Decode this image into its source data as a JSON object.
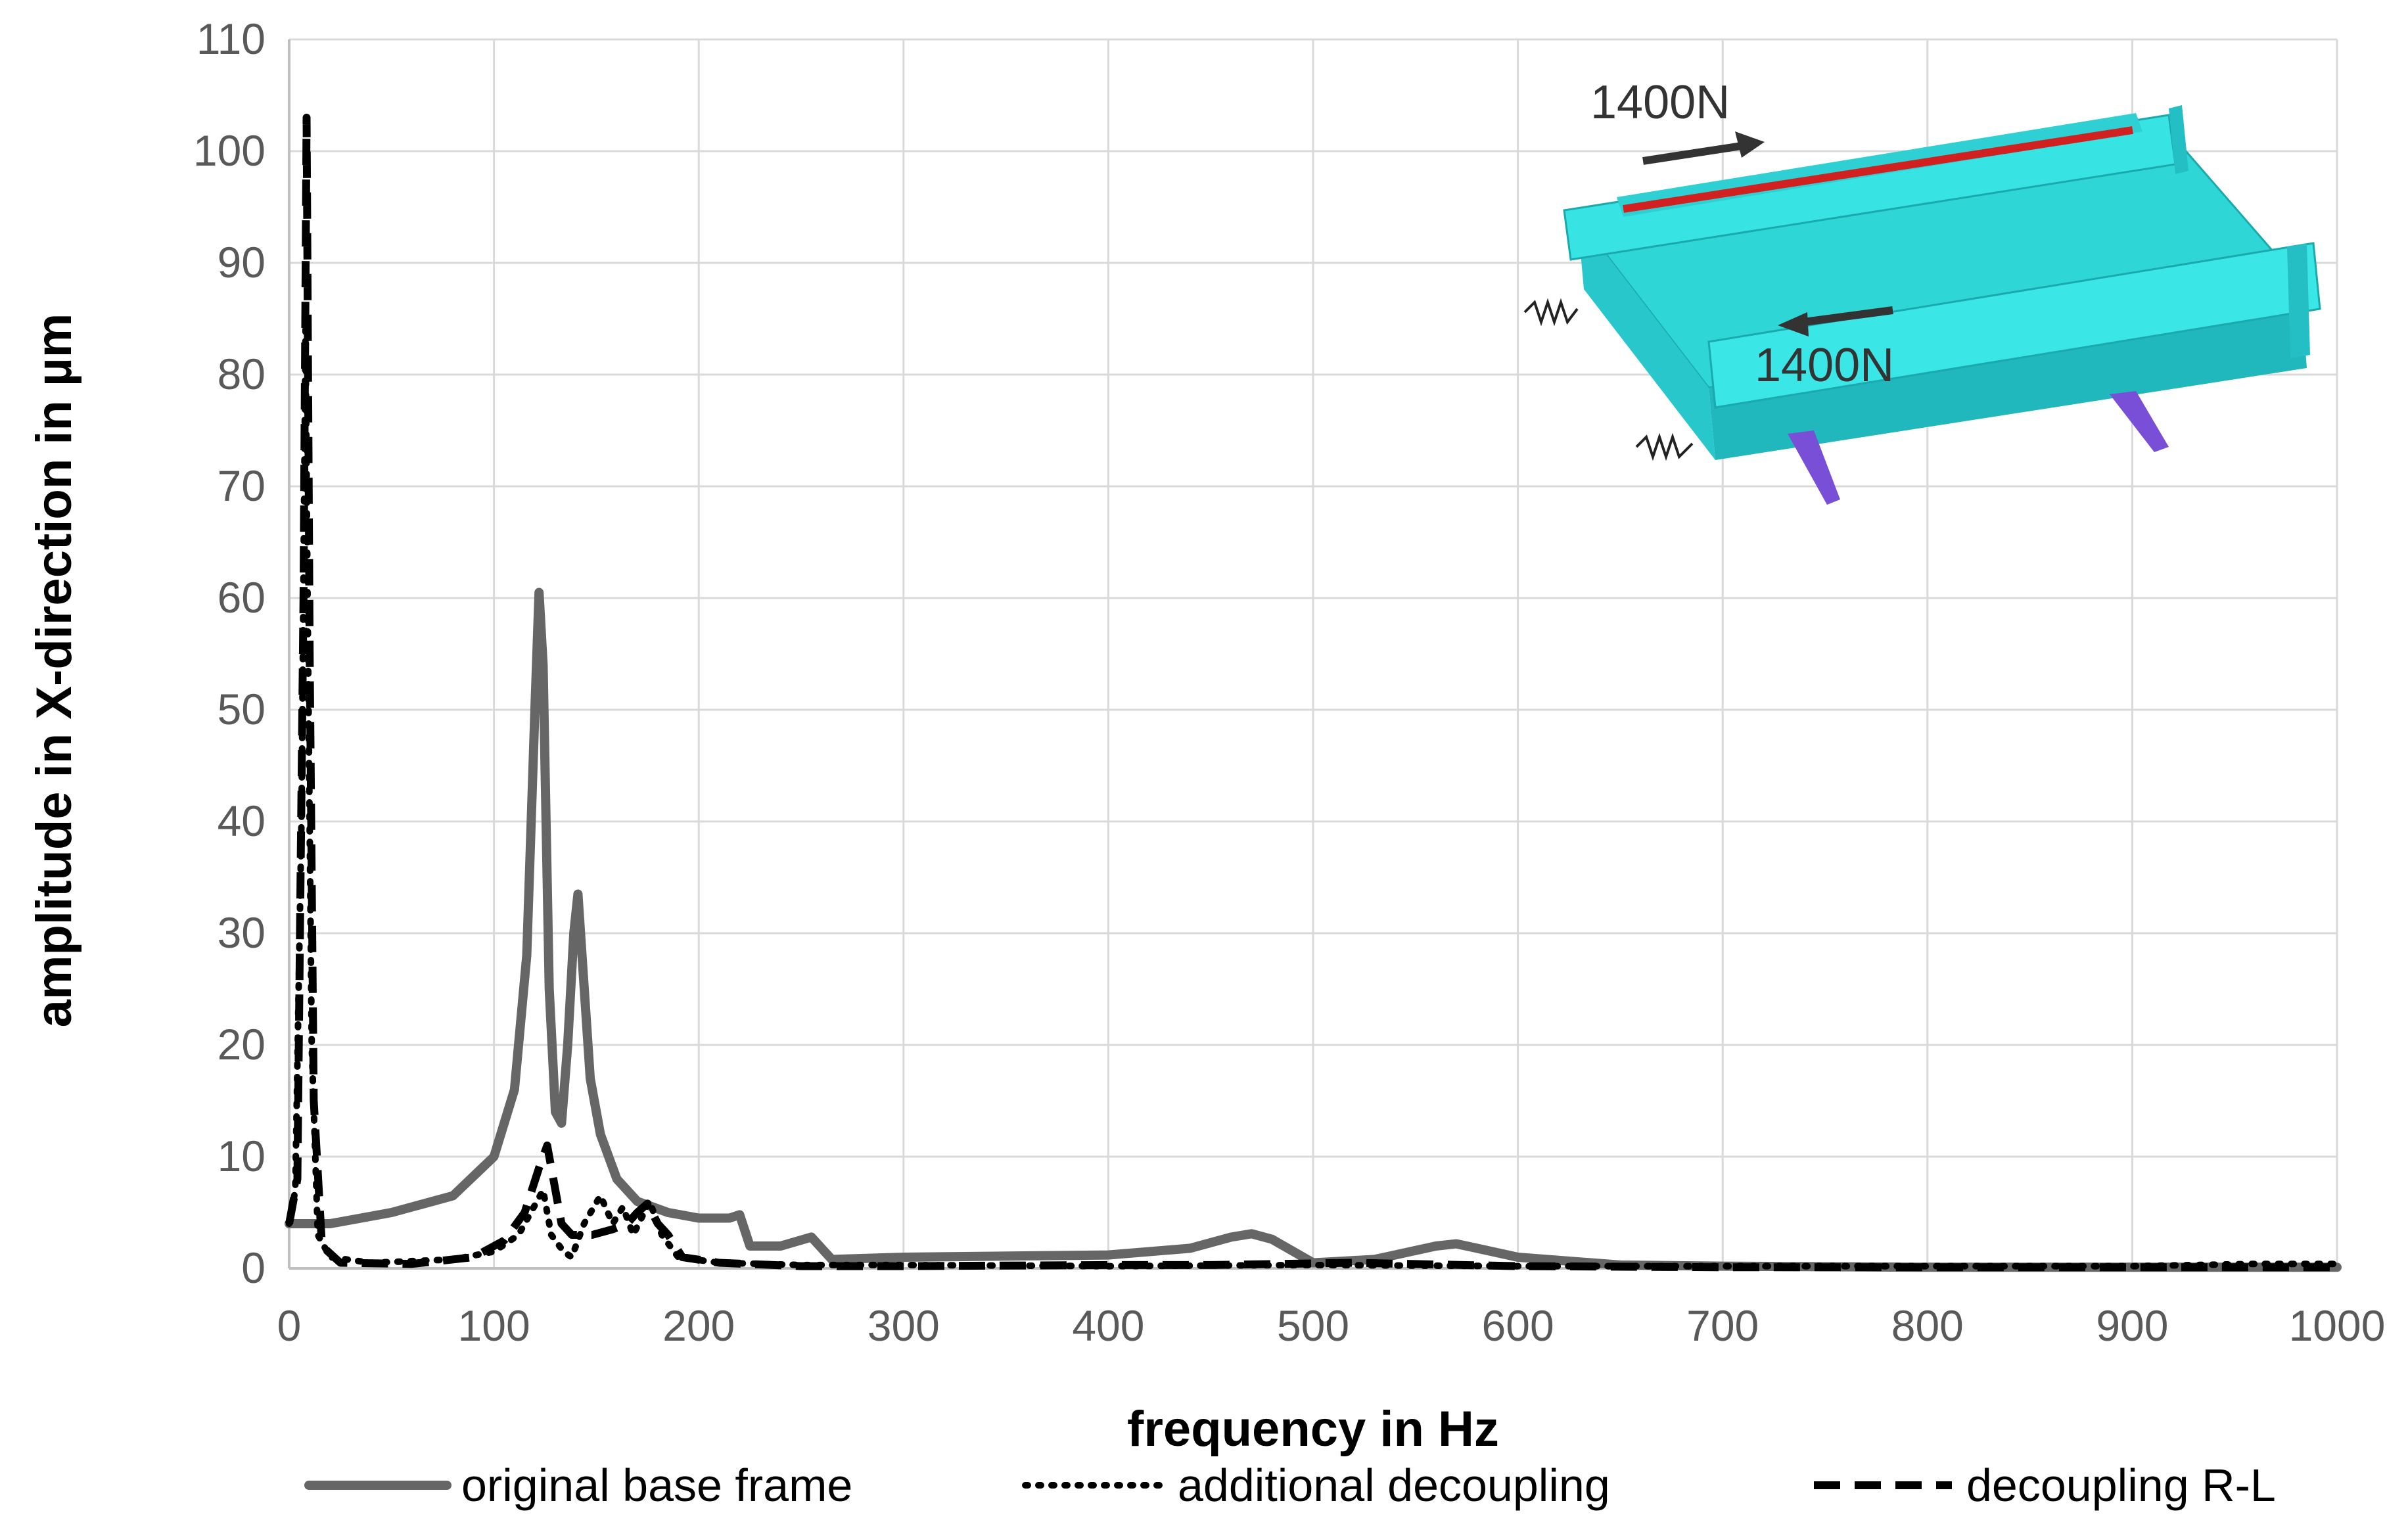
{
  "chart_data": {
    "type": "line",
    "xlabel": "frequency in Hz",
    "ylabel": "amplitude in X-direction in µm",
    "xlim": [
      0,
      1000
    ],
    "ylim": [
      0,
      110
    ],
    "x_ticks": [
      "0",
      "100",
      "200",
      "300",
      "400",
      "500",
      "600",
      "700",
      "800",
      "900",
      "1000"
    ],
    "y_ticks": [
      "0",
      "10",
      "20",
      "30",
      "40",
      "50",
      "60",
      "70",
      "80",
      "90",
      "100",
      "110"
    ],
    "grid": true,
    "legend_position": "bottom",
    "series": [
      {
        "name": "original base frame",
        "color": "#666666",
        "style": "solid",
        "points": [
          [
            0,
            4
          ],
          [
            20,
            4
          ],
          [
            50,
            5
          ],
          [
            80,
            6.5
          ],
          [
            100,
            10
          ],
          [
            110,
            16
          ],
          [
            116,
            28
          ],
          [
            120,
            50
          ],
          [
            122,
            60.5
          ],
          [
            124,
            54
          ],
          [
            127,
            25
          ],
          [
            130,
            14
          ],
          [
            133,
            13
          ],
          [
            136,
            20
          ],
          [
            139,
            30
          ],
          [
            141,
            33.5
          ],
          [
            143,
            28
          ],
          [
            147,
            17
          ],
          [
            152,
            12
          ],
          [
            160,
            8
          ],
          [
            170,
            6
          ],
          [
            185,
            5
          ],
          [
            200,
            4.5
          ],
          [
            215,
            4.5
          ],
          [
            220,
            4.8
          ],
          [
            225,
            2
          ],
          [
            240,
            2
          ],
          [
            255,
            2.8
          ],
          [
            265,
            0.8
          ],
          [
            300,
            1
          ],
          [
            400,
            1.2
          ],
          [
            440,
            1.8
          ],
          [
            460,
            2.8
          ],
          [
            470,
            3.1
          ],
          [
            480,
            2.6
          ],
          [
            500,
            0.5
          ],
          [
            530,
            0.8
          ],
          [
            560,
            2
          ],
          [
            570,
            2.2
          ],
          [
            580,
            1.8
          ],
          [
            600,
            1
          ],
          [
            650,
            0.3
          ],
          [
            700,
            0.2
          ],
          [
            800,
            0.1
          ],
          [
            900,
            0.1
          ],
          [
            1000,
            0.1
          ]
        ]
      },
      {
        "name": "additional decoupling",
        "color": "#000000",
        "style": "dotted",
        "points": [
          [
            0,
            4
          ],
          [
            3,
            7
          ],
          [
            6,
            40
          ],
          [
            8,
            84
          ],
          [
            9,
            60
          ],
          [
            11,
            20
          ],
          [
            14,
            3
          ],
          [
            20,
            1
          ],
          [
            40,
            0.5
          ],
          [
            80,
            0.8
          ],
          [
            100,
            1.5
          ],
          [
            112,
            3
          ],
          [
            118,
            5
          ],
          [
            124,
            7
          ],
          [
            128,
            3
          ],
          [
            134,
            1.5
          ],
          [
            138,
            1
          ],
          [
            144,
            4
          ],
          [
            152,
            6.5
          ],
          [
            158,
            4
          ],
          [
            163,
            5.5
          ],
          [
            168,
            3
          ],
          [
            172,
            4.5
          ],
          [
            176,
            6
          ],
          [
            182,
            3
          ],
          [
            190,
            1
          ],
          [
            210,
            0.5
          ],
          [
            250,
            0.3
          ],
          [
            300,
            0.3
          ],
          [
            400,
            0.2
          ],
          [
            500,
            0.3
          ],
          [
            600,
            0.2
          ],
          [
            700,
            0.2
          ],
          [
            800,
            0.2
          ],
          [
            900,
            0.2
          ],
          [
            960,
            0.4
          ],
          [
            1000,
            0.4
          ]
        ]
      },
      {
        "name": "decoupling R-L",
        "color": "#000000",
        "style": "dashed",
        "points": [
          [
            0,
            4
          ],
          [
            4,
            8
          ],
          [
            7,
            60
          ],
          [
            8.5,
            103
          ],
          [
            10,
            55
          ],
          [
            12,
            15
          ],
          [
            16,
            2
          ],
          [
            25,
            0.5
          ],
          [
            60,
            0.4
          ],
          [
            90,
            1
          ],
          [
            105,
            2.5
          ],
          [
            115,
            5
          ],
          [
            122,
            9
          ],
          [
            126,
            11
          ],
          [
            129,
            8
          ],
          [
            133,
            4
          ],
          [
            138,
            3
          ],
          [
            148,
            3
          ],
          [
            158,
            3.5
          ],
          [
            165,
            4
          ],
          [
            170,
            5
          ],
          [
            175,
            5.8
          ],
          [
            180,
            4
          ],
          [
            185,
            3
          ],
          [
            192,
            1
          ],
          [
            210,
            0.5
          ],
          [
            250,
            0.2
          ],
          [
            300,
            0.2
          ],
          [
            400,
            0.3
          ],
          [
            450,
            0.3
          ],
          [
            520,
            0.5
          ],
          [
            600,
            0.2
          ],
          [
            700,
            0.1
          ],
          [
            800,
            0.1
          ],
          [
            900,
            0.1
          ],
          [
            1000,
            0.1
          ]
        ]
      }
    ]
  },
  "inset": {
    "force_top": "1400N",
    "force_bottom": "1400N",
    "colors": {
      "model": "#33e0e0",
      "model_dark": "#1fb8bf",
      "rail": "#d02020",
      "support": "#7a4fd8"
    }
  }
}
